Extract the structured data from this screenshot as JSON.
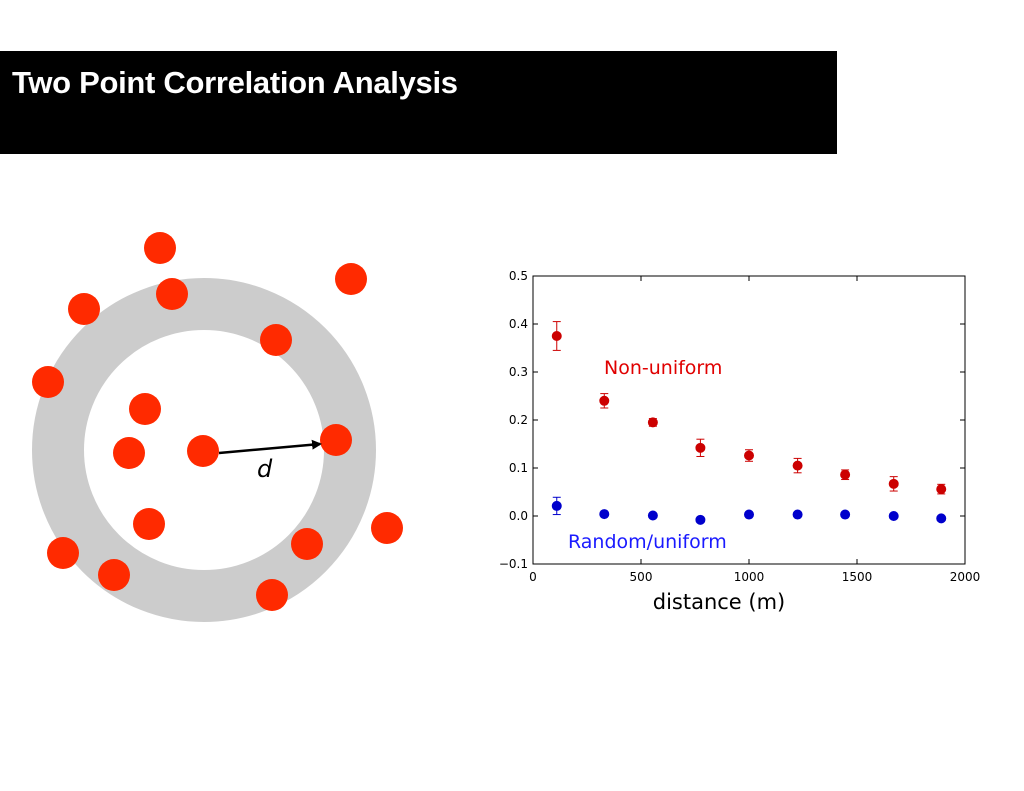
{
  "slide": {
    "title": "Two Point Correlation Analysis"
  },
  "diagram": {
    "distance_label": "d",
    "colors": {
      "point": "#ff2a00",
      "ring": "#cccccc",
      "arrow": "#000000"
    }
  },
  "chart_data": {
    "type": "scatter",
    "title": "",
    "xlabel": "distance (m)",
    "ylabel": "",
    "xlim": [
      0,
      2000
    ],
    "ylim": [
      -0.1,
      0.5
    ],
    "xticks": [
      0,
      500,
      1000,
      1500,
      2000
    ],
    "yticks": [
      -0.1,
      0.0,
      0.1,
      0.2,
      0.3,
      0.4,
      0.5
    ],
    "ytick_labels": [
      "−0.1",
      "0.0",
      "0.1",
      "0.2",
      "0.3",
      "0.4",
      "0.5"
    ],
    "series": [
      {
        "name": "Non-uniform",
        "color": "#cc0000",
        "label_color": "#e00000",
        "x": [
          110,
          330,
          555,
          775,
          1000,
          1225,
          1445,
          1670,
          1890
        ],
        "y": [
          0.375,
          0.24,
          0.195,
          0.142,
          0.126,
          0.105,
          0.086,
          0.067,
          0.056
        ],
        "err": [
          0.03,
          0.015,
          0.008,
          0.018,
          0.012,
          0.015,
          0.01,
          0.015,
          0.01
        ]
      },
      {
        "name": "Random/uniform",
        "color": "#0000cc",
        "label_color": "#1a1aff",
        "x": [
          110,
          330,
          555,
          775,
          1000,
          1225,
          1445,
          1670,
          1890
        ],
        "y": [
          0.021,
          0.004,
          0.001,
          -0.008,
          0.003,
          0.003,
          0.003,
          0.0,
          -0.005
        ],
        "err": [
          0.018,
          0.0,
          0.0,
          0.0,
          0.0,
          0.0,
          0.0,
          0.0,
          0.0
        ]
      }
    ]
  }
}
